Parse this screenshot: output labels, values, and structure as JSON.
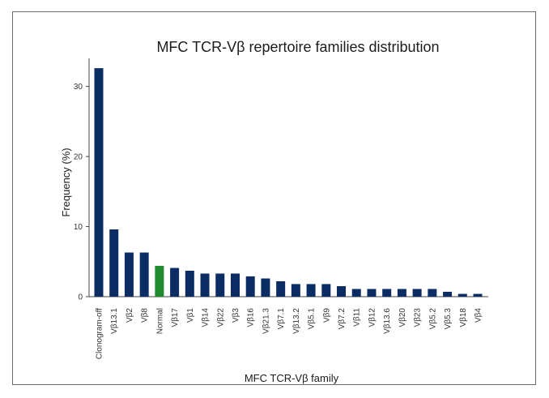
{
  "chart_data": {
    "type": "bar",
    "title": "MFC TCR-Vβ repertoire families distribution",
    "xlabel": "MFC TCR-Vβ family",
    "ylabel": "Frequency (%)",
    "ylim": [
      0,
      34
    ],
    "yticks": [
      0,
      10,
      20,
      30
    ],
    "grid": false,
    "categories": [
      "Clonogram-off",
      "Vβ13.1",
      "Vβ2",
      "Vβ8",
      "Normal",
      "Vβ17",
      "Vβ1",
      "Vβ14",
      "Vβ22",
      "Vβ3",
      "Vβ16",
      "Vβ21.3",
      "Vβ7.1",
      "Vβ13.2",
      "Vβ5.1",
      "Vβ9",
      "Vβ7.2",
      "Vβ11",
      "Vβ12",
      "Vβ13.6",
      "Vβ20",
      "Vβ23",
      "Vβ5.2",
      "Vβ5.3",
      "Vβ18",
      "Vβ4"
    ],
    "values": [
      32.6,
      9.6,
      6.3,
      6.3,
      4.4,
      4.1,
      3.7,
      3.3,
      3.3,
      3.3,
      2.9,
      2.6,
      2.2,
      1.8,
      1.8,
      1.8,
      1.5,
      1.1,
      1.1,
      1.1,
      1.1,
      1.1,
      1.1,
      0.7,
      0.4,
      0.4
    ],
    "colors": {
      "default": "#0b2d63",
      "highlight": "#1f8a2e",
      "highlight_category": "Normal"
    }
  }
}
